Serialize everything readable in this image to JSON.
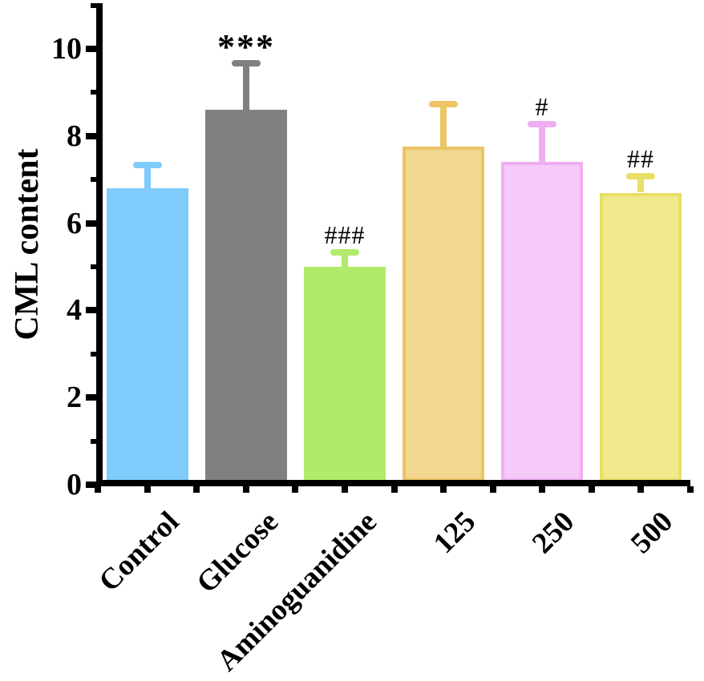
{
  "figure": {
    "background": "#FFFFFF",
    "axis_color": "#000000"
  },
  "chart_data": {
    "type": "bar",
    "title": "",
    "xlabel": "",
    "ylabel": "CML content",
    "ylim": [
      0,
      11
    ],
    "grid": false,
    "legend": false,
    "y_major_ticks": [
      0,
      2,
      4,
      6,
      8,
      10
    ],
    "y_tick_labels": [
      "0",
      "2",
      "4",
      "6",
      "8",
      "10"
    ],
    "y_minor_ticks": [
      1,
      3,
      5,
      7,
      9,
      11
    ],
    "categories": [
      "Control",
      "Glucose",
      "Aminoguanidine",
      "125",
      "250",
      "500"
    ],
    "values": [
      6.8,
      8.6,
      5.0,
      7.75,
      7.4,
      6.7
    ],
    "errors": [
      0.6,
      1.15,
      0.4,
      1.05,
      0.95,
      0.45
    ],
    "error_bar_style": "upper SD with cap",
    "annotations": [
      "",
      "***",
      "###",
      "",
      "#",
      "##"
    ],
    "bar_fill_colors": [
      "#7FCBFB",
      "#808080",
      "#B2EB6C",
      "#F1D78F",
      "#F5C9F8",
      "#EFE98C"
    ],
    "bar_edge_colors": [
      "#7FCBFB",
      "#808080",
      "#B2EB6C",
      "#ECC464",
      "#F0AEF2",
      "#E8DF66"
    ],
    "error_bar_colors": [
      "#7FCBFB",
      "#808080",
      "#B2EB6C",
      "#ECC464",
      "#F0AEF2",
      "#E8DF66"
    ]
  }
}
